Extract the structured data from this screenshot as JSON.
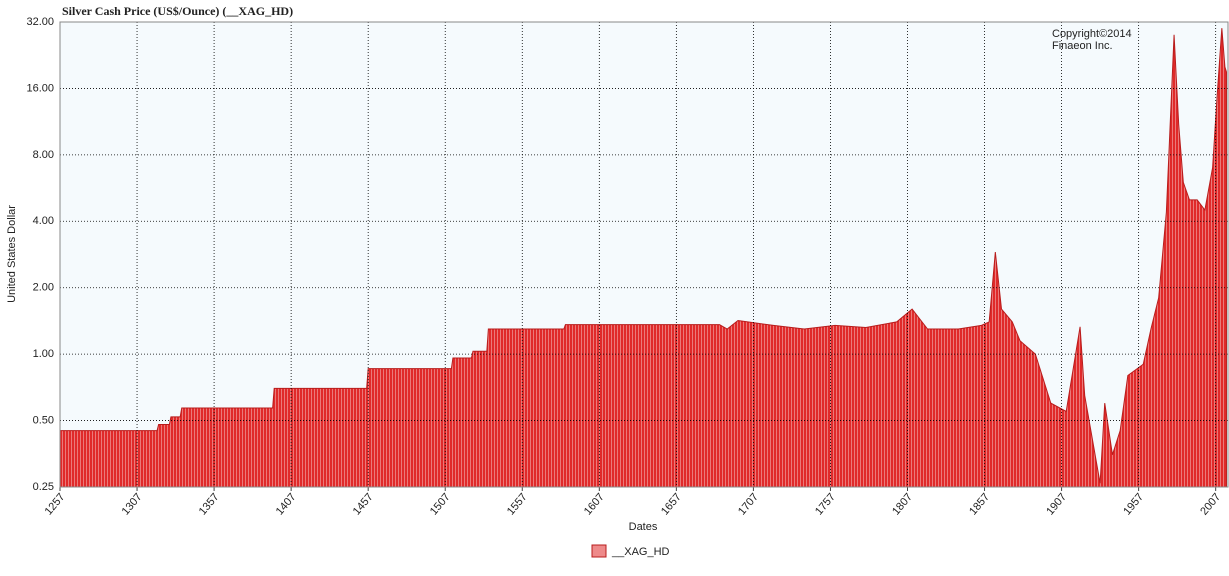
{
  "chart_data": {
    "type": "area",
    "title": "Silver Cash Price (US$/Ounce) (__XAG_HD)",
    "annotation": [
      "Copyright©2014",
      "Finaeon Inc."
    ],
    "x_label": "Dates",
    "y_label": "United States Dollar",
    "y_scale": "log",
    "grid": true,
    "legend": "bottom",
    "x": [
      1257,
      1320,
      1321,
      1328,
      1329,
      1335,
      1336,
      1395,
      1396,
      1456,
      1457,
      1511,
      1512,
      1524,
      1525,
      1534,
      1535,
      1584,
      1585,
      1685,
      1690,
      1697,
      1720,
      1740,
      1760,
      1780,
      1800,
      1810,
      1820,
      1840,
      1855,
      1860,
      1864,
      1868,
      1875,
      1880,
      1890,
      1900,
      1910,
      1919,
      1922,
      1932,
      1935,
      1940,
      1945,
      1950,
      1960,
      1965,
      1970,
      1975,
      1980,
      1983,
      1986,
      1990,
      1995,
      2000,
      2005,
      2008,
      2011,
      2013,
      2014
    ],
    "series": [
      {
        "name": "__XAG_HD",
        "color": "#e02a2a",
        "values": [
          0.45,
          0.45,
          0.48,
          0.48,
          0.52,
          0.52,
          0.57,
          0.57,
          0.7,
          0.7,
          0.86,
          0.86,
          0.96,
          0.96,
          1.03,
          1.03,
          1.3,
          1.3,
          1.36,
          1.36,
          1.3,
          1.42,
          1.35,
          1.3,
          1.35,
          1.32,
          1.4,
          1.6,
          1.3,
          1.3,
          1.35,
          1.4,
          2.9,
          1.6,
          1.4,
          1.15,
          1.0,
          0.6,
          0.55,
          1.33,
          0.65,
          0.26,
          0.6,
          0.35,
          0.45,
          0.8,
          0.9,
          1.3,
          1.8,
          4.4,
          28,
          11,
          6,
          5,
          5,
          4.5,
          7,
          15,
          30,
          20,
          19
        ]
      }
    ],
    "xlim": [
      1257,
      2015
    ],
    "xticks": [
      1257,
      1307,
      1357,
      1407,
      1457,
      1507,
      1557,
      1607,
      1657,
      1707,
      1757,
      1807,
      1857,
      1907,
      1957,
      2007
    ],
    "ylim": [
      0.25,
      32
    ],
    "yticks": [
      {
        "value": 0.25,
        "label": "0.25"
      },
      {
        "value": 0.5,
        "label": "0.50"
      },
      {
        "value": 1,
        "label": "1.00"
      },
      {
        "value": 2,
        "label": "2.00"
      },
      {
        "value": 4,
        "label": "4.00"
      },
      {
        "value": 8,
        "label": "8.00"
      },
      {
        "value": 16,
        "label": "16.00"
      },
      {
        "value": 32,
        "label": "32.00"
      }
    ]
  }
}
